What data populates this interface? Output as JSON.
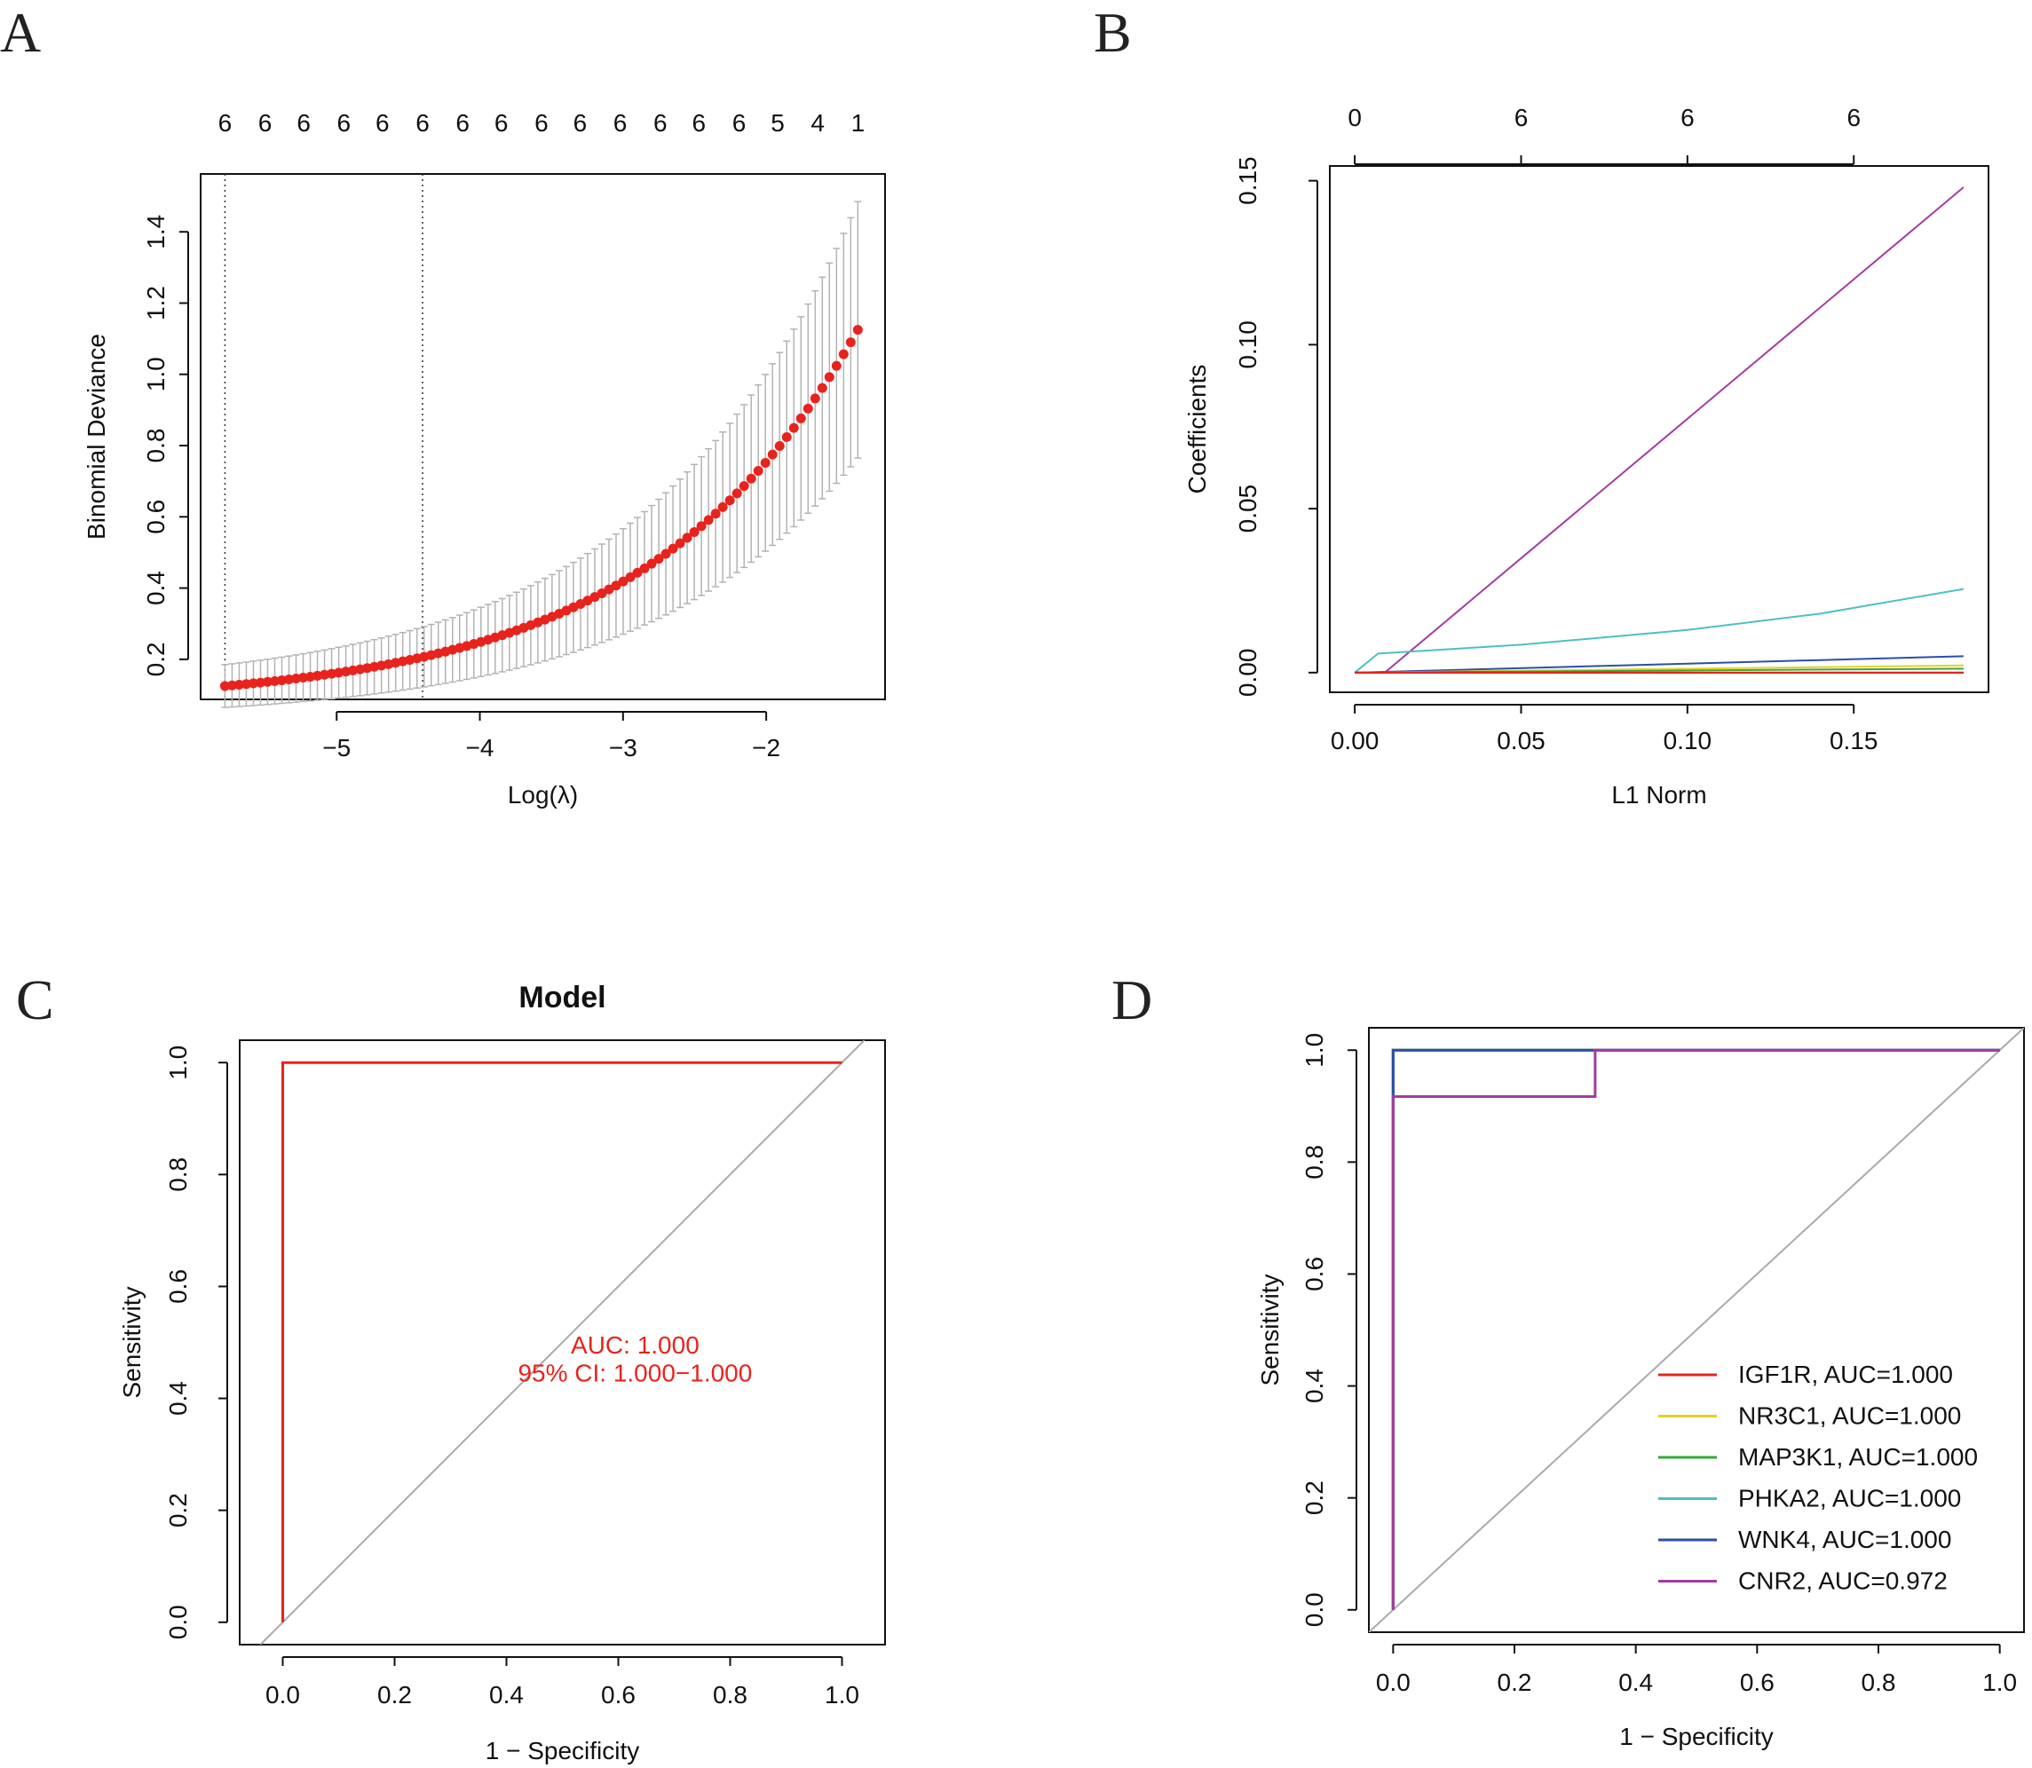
{
  "chart_data": [
    {
      "panel": "A",
      "type": "scatter",
      "xlabel": "Log(λ)",
      "ylabel": "Binomial Deviance",
      "xlim": [
        -5.95,
        -1.17
      ],
      "ylim": [
        0.0875,
        1.5625
      ],
      "xticks": [
        -5,
        -4,
        -3,
        -2
      ],
      "xtick_labels": [
        "−5",
        "−4",
        "−3",
        "−2"
      ],
      "yticks": [
        0.2,
        0.4,
        0.6,
        0.8,
        1.0,
        1.2,
        1.4
      ],
      "ytick_labels": [
        "0.2",
        "0.4",
        "0.6",
        "0.8",
        "1.0",
        "1.2",
        "1.4"
      ],
      "top_axis_labels": [
        "6",
        "6",
        "6",
        "6",
        "6",
        "6",
        "6",
        "6",
        "6",
        "6",
        "6",
        "6",
        "6",
        "6",
        "5",
        "4",
        "1"
      ],
      "top_axis_x": [
        -5.78,
        -5.5,
        -5.23,
        -4.95,
        -4.68,
        -4.4,
        -4.12,
        -3.85,
        -3.57,
        -3.3,
        -3.02,
        -2.74,
        -2.47,
        -2.19,
        -1.92,
        -1.64,
        -1.36
      ],
      "vlines": [
        -5.78,
        -4.4
      ],
      "lambda_min": -5.78,
      "lambda_max": -1.36,
      "n_points": 90,
      "series": [
        {
          "name": "cross-validated deviance",
          "color": "#e8231d",
          "error_bar_color": "#b3b3b3"
        }
      ],
      "curve_y_start": 0.125,
      "curve_growth": 3.0,
      "curve_y_end": 1.125,
      "error_halfwidth_start": 0.06,
      "error_halfwidth_end": 0.36
    },
    {
      "panel": "B",
      "type": "line",
      "xlabel": "L1 Norm",
      "ylabel": "Coefficients",
      "xlim": [
        -0.0075,
        0.1905
      ],
      "ylim": [
        -0.006,
        0.1545
      ],
      "xticks": [
        0.0,
        0.05,
        0.1,
        0.15
      ],
      "xtick_labels": [
        "0.00",
        "0.05",
        "0.10",
        "0.15"
      ],
      "yticks": [
        0.0,
        0.05,
        0.1,
        0.15
      ],
      "ytick_labels": [
        "0.00",
        "0.05",
        "0.10",
        "0.15"
      ],
      "top_axis_labels": [
        "0",
        "6",
        "6",
        "6"
      ],
      "top_axis_x": [
        0.0,
        0.05,
        0.1,
        0.15
      ],
      "series": [
        {
          "name": "purple",
          "color": "#a33ba0",
          "x": [
            0,
            0.009,
            0.183
          ],
          "y": [
            0,
            0.0,
            0.148
          ]
        },
        {
          "name": "cyan",
          "color": "#4cc0c0",
          "x": [
            0,
            0.007,
            0.05,
            0.1,
            0.14,
            0.183
          ],
          "y": [
            0,
            0.0058,
            0.0085,
            0.013,
            0.018,
            0.0255
          ]
        },
        {
          "name": "blue",
          "color": "#2b4ea8",
          "x": [
            0,
            0.183
          ],
          "y": [
            0,
            0.005
          ]
        },
        {
          "name": "yellow",
          "color": "#e6d02b",
          "x": [
            0,
            0.183
          ],
          "y": [
            0,
            0.0022
          ]
        },
        {
          "name": "green",
          "color": "#3aa83a",
          "x": [
            0,
            0.183
          ],
          "y": [
            0,
            0.0012
          ]
        },
        {
          "name": "black",
          "color": "#111111",
          "x": [
            0,
            0.183
          ],
          "y": [
            0,
            0.0
          ]
        },
        {
          "name": "red",
          "color": "#e8231d",
          "x": [
            0,
            0.183
          ],
          "y": [
            0,
            0.0
          ]
        }
      ]
    },
    {
      "panel": "C",
      "type": "line",
      "title": "Model",
      "xlabel": "1 − Specificity",
      "ylabel": "Sensitivity",
      "xlim": [
        -0.077,
        1.077
      ],
      "ylim": [
        -0.04,
        1.04
      ],
      "xticks": [
        0.0,
        0.2,
        0.4,
        0.6,
        0.8,
        1.0
      ],
      "xtick_labels": [
        "0.0",
        "0.2",
        "0.4",
        "0.6",
        "0.8",
        "1.0"
      ],
      "yticks": [
        0.0,
        0.2,
        0.4,
        0.6,
        0.8,
        1.0
      ],
      "ytick_labels": [
        "0.0",
        "0.2",
        "0.4",
        "0.6",
        "0.8",
        "1.0"
      ],
      "series": [
        {
          "name": "Model ROC",
          "color": "#e8231d",
          "x": [
            0,
            0,
            1
          ],
          "y": [
            0,
            1,
            1
          ]
        },
        {
          "name": "diagonal",
          "color": "#aaaaaa",
          "x": [
            -0.04,
            1.04
          ],
          "y": [
            -0.04,
            1.04
          ]
        }
      ],
      "annotation_lines": [
        "AUC: 1.000",
        "95% CI: 1.000−1.000"
      ],
      "annotation_x": 0.63,
      "annotation_y": [
        0.48,
        0.43
      ],
      "annotation_color": "#e8231d"
    },
    {
      "panel": "D",
      "type": "line",
      "xlabel": "1 − Specificity",
      "ylabel": "Sensitivity",
      "xlim": [
        -0.04,
        1.04
      ],
      "ylim": [
        -0.04,
        1.04
      ],
      "xticks": [
        0.0,
        0.2,
        0.4,
        0.6,
        0.8,
        1.0
      ],
      "xtick_labels": [
        "0.0",
        "0.2",
        "0.4",
        "0.6",
        "0.8",
        "1.0"
      ],
      "yticks": [
        0.0,
        0.2,
        0.4,
        0.6,
        0.8,
        1.0
      ],
      "ytick_labels": [
        "0.0",
        "0.2",
        "0.4",
        "0.6",
        "0.8",
        "1.0"
      ],
      "legend_position": "bottom-right",
      "series": [
        {
          "name": "IGF1R, AUC=1.000",
          "color": "#e8231d",
          "x": [
            0,
            0,
            1
          ],
          "y": [
            0,
            1,
            1
          ]
        },
        {
          "name": "NR3C1, AUC=1.000",
          "color": "#e6d02b",
          "x": [
            0,
            0,
            1
          ],
          "y": [
            0,
            1,
            1
          ]
        },
        {
          "name": "MAP3K1, AUC=1.000",
          "color": "#3aa83a",
          "x": [
            0,
            0,
            1
          ],
          "y": [
            0,
            1,
            1
          ]
        },
        {
          "name": "PHKA2, AUC=1.000",
          "color": "#4cc0c0",
          "x": [
            0,
            0,
            1
          ],
          "y": [
            0,
            1,
            1
          ]
        },
        {
          "name": "WNK4, AUC=1.000",
          "color": "#2b4ea8",
          "x": [
            0,
            0,
            1
          ],
          "y": [
            0,
            1,
            1
          ]
        },
        {
          "name": "CNR2, AUC=0.972",
          "color": "#a33ba0",
          "x": [
            0,
            0,
            0.333,
            0.333,
            1
          ],
          "y": [
            0,
            0.917,
            0.917,
            1,
            1
          ]
        }
      ],
      "diagonal_color": "#aaaaaa"
    }
  ]
}
